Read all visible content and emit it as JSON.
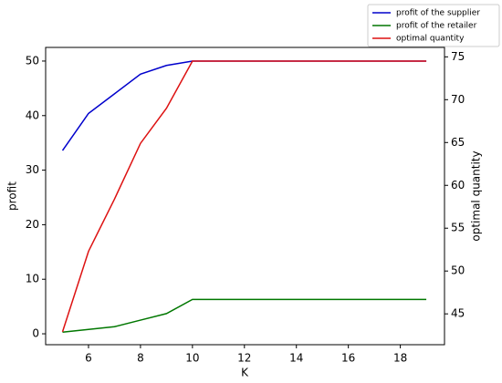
{
  "chart_data": {
    "type": "line",
    "x_label": "K",
    "y_label": "profit",
    "y2_label": "optimal quantity",
    "x": [
      5,
      6,
      7,
      8,
      9,
      10,
      11,
      12,
      13,
      14,
      15,
      16,
      17,
      18,
      19
    ],
    "series": [
      {
        "name": "profit of the supplier",
        "color": "#0000cc",
        "values": [
          33.6,
          40.4,
          44,
          47.6,
          49.2,
          50,
          50,
          50,
          50,
          50,
          50,
          50,
          50,
          50,
          50
        ]
      },
      {
        "name": "profit of the retailer",
        "color": "#007700",
        "values": [
          0.3,
          0.8,
          1.3,
          2.5,
          3.7,
          6.3,
          6.3,
          6.3,
          6.3,
          6.3,
          6.3,
          6.3,
          6.3,
          6.3,
          6.3
        ]
      },
      {
        "name": "optimal quantity",
        "color": "#dd1111",
        "axis": "y2",
        "values": [
          42.9,
          52.3,
          58.4,
          64.9,
          69.0,
          74.5,
          74.5,
          74.5,
          74.5,
          74.5,
          74.5,
          74.5,
          74.5,
          74.5,
          74.5
        ]
      }
    ],
    "xlim": [
      4.35,
      19.7
    ],
    "xticks": [
      6,
      8,
      10,
      12,
      14,
      16,
      18
    ],
    "ylim": [
      -2.0,
      52.5
    ],
    "yticks": [
      0,
      10,
      20,
      30,
      40,
      50
    ],
    "y2lim": [
      41.4,
      76.1
    ],
    "y2ticks": [
      45,
      50,
      55,
      60,
      65,
      70,
      75
    ],
    "legend": "top-right-outside",
    "grid": false
  }
}
